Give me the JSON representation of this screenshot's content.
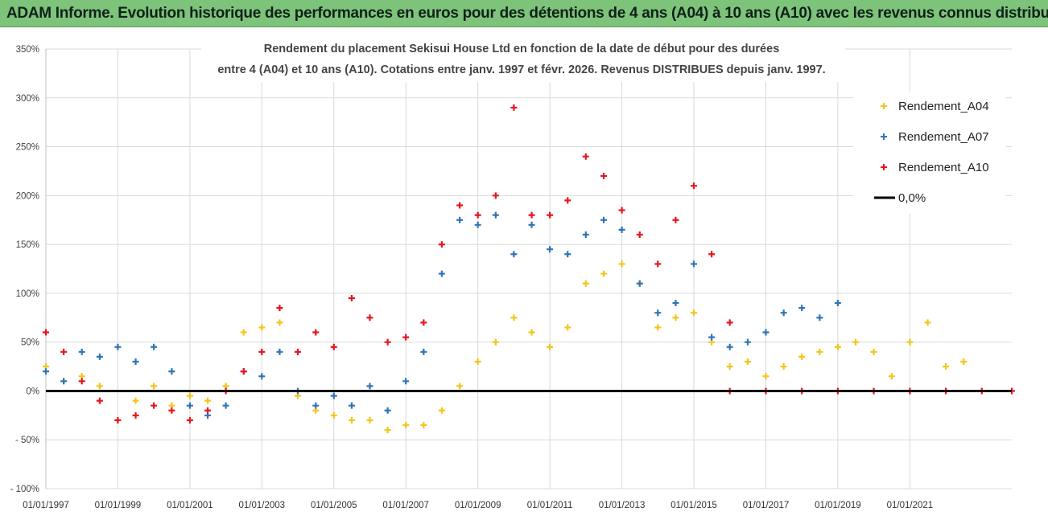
{
  "banner": {
    "title": "ADAM Informe. Evolution historique des performances en euros pour des détentions de 4 ans (A04) à 10 ans (A10) avec les revenus connus distribués"
  },
  "colors": {
    "banner_bg": "#7dc47a",
    "A04": "#f5c518",
    "A07": "#2e75b6",
    "A10": "#e8141c",
    "zero_line": "#000000",
    "grid": "#d9d9d9"
  },
  "chart_data": {
    "type": "scatter",
    "title": "Rendement du placement Sekisui House Ltd en fonction de la date de début pour des durées",
    "subtitle": "entre 4 (A04) et 10 ans (A10). Cotations entre janv. 1997 et févr. 2026. Revenus DISTRIBUES depuis janv. 1997.",
    "xlabel": "",
    "ylabel": "",
    "marker": "+",
    "grid": true,
    "legend_position": "top-right",
    "x_range": [
      "1997-01-01",
      "2023-11-01"
    ],
    "ylim": [
      -100,
      350
    ],
    "y_ticks": [
      "- 100%",
      "- 50%",
      "0%",
      "50%",
      "100%",
      "150%",
      "200%",
      "250%",
      "300%",
      "350%"
    ],
    "y_tick_values": [
      -100,
      -50,
      0,
      50,
      100,
      150,
      200,
      250,
      300,
      350
    ],
    "x_ticks": [
      "01/01/1997",
      "01/01/1999",
      "01/01/2001",
      "01/01/2003",
      "01/01/2005",
      "01/01/2007",
      "01/01/2009",
      "01/01/2011",
      "01/01/2013",
      "01/01/2015",
      "01/01/2017",
      "01/01/2019",
      "01/01/2021"
    ],
    "x_tick_dates": [
      "1997-01-01",
      "1999-01-01",
      "2001-01-01",
      "2003-01-01",
      "2005-01-01",
      "2007-01-01",
      "2009-01-01",
      "2011-01-01",
      "2013-01-01",
      "2015-01-01",
      "2017-01-01",
      "2019-01-01",
      "2021-01-01"
    ],
    "series": [
      {
        "name": "Rendement_A04",
        "x": [
          "1997-01-01",
          "1997-07-01",
          "1998-01-01",
          "1998-07-01",
          "1999-01-01",
          "1999-07-01",
          "2000-01-01",
          "2000-07-01",
          "2001-01-01",
          "2001-07-01",
          "2002-01-01",
          "2002-07-01",
          "2003-01-01",
          "2003-07-01",
          "2004-01-01",
          "2004-07-01",
          "2005-01-01",
          "2005-07-01",
          "2006-01-01",
          "2006-07-01",
          "2007-01-01",
          "2007-07-01",
          "2008-01-01",
          "2008-07-01",
          "2009-01-01",
          "2009-07-01",
          "2010-01-01",
          "2010-07-01",
          "2011-01-01",
          "2011-07-01",
          "2012-01-01",
          "2012-07-01",
          "2013-01-01",
          "2013-07-01",
          "2014-01-01",
          "2014-07-01",
          "2015-01-01",
          "2015-07-01",
          "2016-01-01",
          "2016-07-01",
          "2017-01-01",
          "2017-07-01",
          "2018-01-01",
          "2018-07-01",
          "2019-01-01",
          "2019-07-01",
          "2020-01-01",
          "2020-07-01",
          "2021-01-01",
          "2021-07-01",
          "2022-01-01",
          "2022-07-01"
        ],
        "y": [
          25,
          10,
          15,
          5,
          -30,
          -10,
          5,
          -15,
          -5,
          -10,
          5,
          60,
          65,
          70,
          -5,
          -20,
          -25,
          -30,
          -30,
          -40,
          -35,
          -35,
          -20,
          5,
          30,
          50,
          75,
          60,
          45,
          65,
          110,
          120,
          130,
          110,
          65,
          75,
          80,
          50,
          25,
          30,
          15,
          25,
          35,
          40,
          45,
          50,
          40,
          15,
          50,
          70,
          25,
          30
        ]
      },
      {
        "name": "Rendement_A07",
        "x": [
          "1997-01-01",
          "1997-07-01",
          "1998-01-01",
          "1998-07-01",
          "1999-01-01",
          "1999-07-01",
          "2000-01-01",
          "2000-07-01",
          "2001-01-01",
          "2001-07-01",
          "2002-01-01",
          "2002-07-01",
          "2003-01-01",
          "2003-07-01",
          "2004-01-01",
          "2004-07-01",
          "2005-01-01",
          "2005-07-01",
          "2006-01-01",
          "2006-07-01",
          "2007-01-01",
          "2007-07-01",
          "2008-01-01",
          "2008-07-01",
          "2009-01-01",
          "2009-07-01",
          "2010-01-01",
          "2010-07-01",
          "2011-01-01",
          "2011-07-01",
          "2012-01-01",
          "2012-07-01",
          "2013-01-01",
          "2013-07-01",
          "2014-01-01",
          "2014-07-01",
          "2015-01-01",
          "2015-07-01",
          "2016-01-01",
          "2016-07-01",
          "2017-01-01",
          "2017-07-01",
          "2018-01-01",
          "2018-07-01",
          "2019-01-01"
        ],
        "y": [
          20,
          10,
          40,
          35,
          45,
          30,
          45,
          20,
          -15,
          -25,
          -15,
          20,
          15,
          40,
          0,
          -15,
          -5,
          -15,
          5,
          -20,
          10,
          40,
          120,
          175,
          170,
          180,
          140,
          170,
          145,
          140,
          160,
          175,
          165,
          110,
          80,
          90,
          130,
          55,
          45,
          50,
          60,
          80,
          85,
          75,
          90
        ]
      },
      {
        "name": "Rendement_A10",
        "x": [
          "1997-01-01",
          "1997-07-01",
          "1998-01-01",
          "1998-07-01",
          "1999-01-01",
          "1999-07-01",
          "2000-01-01",
          "2000-07-01",
          "2001-01-01",
          "2001-07-01",
          "2002-01-01",
          "2002-07-01",
          "2003-01-01",
          "2003-07-01",
          "2004-01-01",
          "2004-07-01",
          "2005-01-01",
          "2005-07-01",
          "2006-01-01",
          "2006-07-01",
          "2007-01-01",
          "2007-07-01",
          "2008-01-01",
          "2008-07-01",
          "2009-01-01",
          "2009-07-01",
          "2010-01-01",
          "2010-07-01",
          "2011-01-01",
          "2011-07-01",
          "2012-01-01",
          "2012-07-01",
          "2013-01-01",
          "2013-07-01",
          "2014-01-01",
          "2014-07-01",
          "2015-01-01",
          "2015-07-01",
          "2016-01-01"
        ],
        "y": [
          60,
          40,
          10,
          -10,
          -30,
          -25,
          -15,
          -20,
          -30,
          -20,
          0,
          20,
          40,
          85,
          40,
          60,
          45,
          95,
          75,
          50,
          55,
          70,
          150,
          190,
          180,
          200,
          290,
          180,
          180,
          195,
          240,
          220,
          185,
          160,
          130,
          175,
          210,
          140,
          70
        ]
      },
      {
        "name": "Rendement_A10",
        "x": [
          "2016-01-01",
          "2017-01-01",
          "2018-01-01",
          "2019-01-01",
          "2020-01-01",
          "2021-01-01",
          "2022-01-01",
          "2023-01-01",
          "2023-11-01"
        ],
        "y": [
          0,
          0,
          0,
          0,
          0,
          0,
          0,
          0,
          0
        ]
      }
    ],
    "reference_line": {
      "name": "0,0%",
      "y": 0
    }
  },
  "legend": [
    {
      "label": "Rendement_A04",
      "color": "#f5c518",
      "marker": "+"
    },
    {
      "label": "Rendement_A07",
      "color": "#2e75b6",
      "marker": "+"
    },
    {
      "label": "Rendement_A10",
      "color": "#e8141c",
      "marker": "+"
    },
    {
      "label": "0,0%",
      "color": "#000000",
      "marker": "line"
    }
  ]
}
